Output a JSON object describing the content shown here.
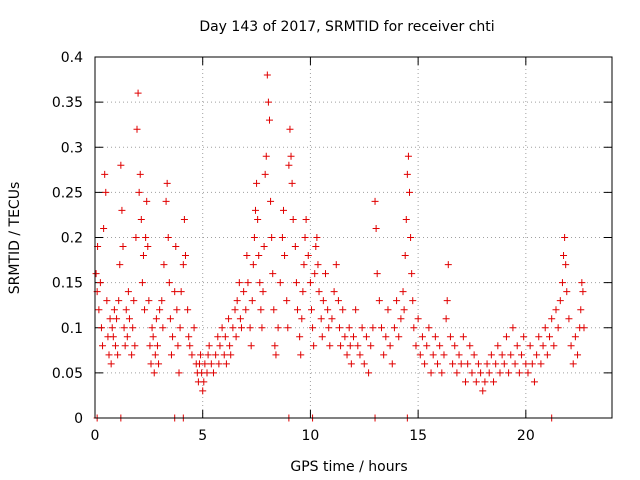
{
  "chart_data": {
    "type": "scatter",
    "title": "Day 143 of 2017, SRMTID for receiver chti",
    "xlabel": "GPS time / hours",
    "ylabel": "SRMTID / TECUs",
    "xlim": [
      0,
      24
    ],
    "ylim": [
      0,
      0.4
    ],
    "xticks": [
      0,
      5,
      10,
      15,
      20
    ],
    "yticks": [
      0,
      0.05,
      0.1,
      0.15,
      0.2,
      0.25,
      0.3,
      0.35,
      0.4
    ],
    "grid": true,
    "marker": "+",
    "color": "#e00000",
    "series": [
      {
        "name": "SRMTID",
        "points": [
          [
            0.05,
            0.16
          ],
          [
            0.1,
            0.14
          ],
          [
            0.12,
            0.19
          ],
          [
            0.18,
            0.12
          ],
          [
            0.25,
            0.15
          ],
          [
            0.3,
            0.1
          ],
          [
            0.35,
            0.08
          ],
          [
            0.4,
            0.21
          ],
          [
            0.45,
            0.27
          ],
          [
            0.5,
            0.25
          ],
          [
            0.55,
            0.13
          ],
          [
            0.6,
            0.09
          ],
          [
            0.65,
            0.07
          ],
          [
            0.7,
            0.11
          ],
          [
            0.75,
            0.06
          ],
          [
            0.8,
            0.1
          ],
          [
            0.85,
            0.09
          ],
          [
            0.9,
            0.12
          ],
          [
            0.95,
            0.08
          ],
          [
            1.0,
            0.11
          ],
          [
            1.05,
            0.07
          ],
          [
            1.1,
            0.13
          ],
          [
            1.15,
            0.17
          ],
          [
            1.2,
            0.28
          ],
          [
            1.25,
            0.23
          ],
          [
            1.3,
            0.19
          ],
          [
            1.35,
            0.1
          ],
          [
            1.4,
            0.08
          ],
          [
            1.45,
            0.12
          ],
          [
            1.5,
            0.09
          ],
          [
            1.55,
            0.14
          ],
          [
            1.6,
            0.11
          ],
          [
            1.7,
            0.07
          ],
          [
            1.75,
            0.1
          ],
          [
            1.8,
            0.13
          ],
          [
            1.85,
            0.08
          ],
          [
            1.9,
            0.2
          ],
          [
            1.95,
            0.32
          ],
          [
            2.0,
            0.36
          ],
          [
            2.05,
            0.25
          ],
          [
            2.1,
            0.27
          ],
          [
            2.15,
            0.22
          ],
          [
            2.2,
            0.15
          ],
          [
            2.25,
            0.18
          ],
          [
            2.3,
            0.12
          ],
          [
            2.35,
            0.2
          ],
          [
            2.4,
            0.24
          ],
          [
            2.45,
            0.19
          ],
          [
            2.5,
            0.13
          ],
          [
            2.55,
            0.08
          ],
          [
            2.6,
            0.06
          ],
          [
            2.65,
            0.1
          ],
          [
            2.7,
            0.09
          ],
          [
            2.75,
            0.05
          ],
          [
            2.8,
            0.07
          ],
          [
            2.85,
            0.11
          ],
          [
            2.9,
            0.08
          ],
          [
            2.95,
            0.06
          ],
          [
            3.0,
            0.12
          ],
          [
            3.1,
            0.13
          ],
          [
            3.15,
            0.1
          ],
          [
            3.2,
            0.17
          ],
          [
            3.3,
            0.24
          ],
          [
            3.35,
            0.26
          ],
          [
            3.4,
            0.2
          ],
          [
            3.45,
            0.15
          ],
          [
            3.5,
            0.11
          ],
          [
            3.55,
            0.07
          ],
          [
            3.6,
            0.09
          ],
          [
            3.7,
            0.14
          ],
          [
            3.75,
            0.19
          ],
          [
            3.8,
            0.12
          ],
          [
            3.85,
            0.08
          ],
          [
            3.9,
            0.05
          ],
          [
            3.95,
            0.1
          ],
          [
            4.0,
            0.14
          ],
          [
            4.1,
            0.17
          ],
          [
            4.15,
            0.22
          ],
          [
            4.2,
            0.18
          ],
          [
            4.3,
            0.12
          ],
          [
            4.35,
            0.09
          ],
          [
            4.4,
            0.08
          ],
          [
            4.5,
            0.07
          ],
          [
            4.6,
            0.1
          ],
          [
            4.7,
            0.06
          ],
          [
            4.75,
            0.05
          ],
          [
            4.8,
            0.04
          ],
          [
            4.85,
            0.06
          ],
          [
            4.9,
            0.07
          ],
          [
            4.95,
            0.05
          ],
          [
            5.0,
            0.03
          ],
          [
            5.05,
            0.04
          ],
          [
            5.1,
            0.06
          ],
          [
            5.2,
            0.05
          ],
          [
            5.25,
            0.07
          ],
          [
            5.3,
            0.08
          ],
          [
            5.4,
            0.06
          ],
          [
            5.5,
            0.05
          ],
          [
            5.6,
            0.07
          ],
          [
            5.7,
            0.09
          ],
          [
            5.75,
            0.06
          ],
          [
            5.8,
            0.08
          ],
          [
            5.9,
            0.1
          ],
          [
            6.0,
            0.07
          ],
          [
            6.05,
            0.09
          ],
          [
            6.1,
            0.06
          ],
          [
            6.2,
            0.11
          ],
          [
            6.25,
            0.08
          ],
          [
            6.3,
            0.07
          ],
          [
            6.4,
            0.1
          ],
          [
            6.5,
            0.12
          ],
          [
            6.55,
            0.09
          ],
          [
            6.6,
            0.13
          ],
          [
            6.7,
            0.15
          ],
          [
            6.75,
            0.11
          ],
          [
            6.8,
            0.1
          ],
          [
            6.9,
            0.14
          ],
          [
            7.0,
            0.12
          ],
          [
            7.05,
            0.18
          ],
          [
            7.1,
            0.15
          ],
          [
            7.2,
            0.1
          ],
          [
            7.25,
            0.08
          ],
          [
            7.3,
            0.13
          ],
          [
            7.35,
            0.17
          ],
          [
            7.4,
            0.2
          ],
          [
            7.45,
            0.23
          ],
          [
            7.5,
            0.26
          ],
          [
            7.55,
            0.22
          ],
          [
            7.6,
            0.18
          ],
          [
            7.65,
            0.15
          ],
          [
            7.7,
            0.12
          ],
          [
            7.75,
            0.1
          ],
          [
            7.8,
            0.14
          ],
          [
            7.85,
            0.19
          ],
          [
            7.9,
            0.27
          ],
          [
            7.95,
            0.29
          ],
          [
            8.0,
            0.38
          ],
          [
            8.05,
            0.35
          ],
          [
            8.1,
            0.33
          ],
          [
            8.15,
            0.24
          ],
          [
            8.2,
            0.2
          ],
          [
            8.25,
            0.16
          ],
          [
            8.3,
            0.12
          ],
          [
            8.35,
            0.08
          ],
          [
            8.4,
            0.07
          ],
          [
            8.5,
            0.1
          ],
          [
            8.6,
            0.15
          ],
          [
            8.7,
            0.2
          ],
          [
            8.75,
            0.23
          ],
          [
            8.8,
            0.18
          ],
          [
            8.9,
            0.13
          ],
          [
            8.95,
            0.1
          ],
          [
            9.0,
            0.28
          ],
          [
            9.05,
            0.32
          ],
          [
            9.1,
            0.29
          ],
          [
            9.15,
            0.26
          ],
          [
            9.2,
            0.22
          ],
          [
            9.3,
            0.19
          ],
          [
            9.35,
            0.15
          ],
          [
            9.4,
            0.12
          ],
          [
            9.5,
            0.09
          ],
          [
            9.55,
            0.07
          ],
          [
            9.6,
            0.11
          ],
          [
            9.65,
            0.14
          ],
          [
            9.7,
            0.17
          ],
          [
            9.75,
            0.2
          ],
          [
            9.8,
            0.22
          ],
          [
            9.9,
            0.18
          ],
          [
            10.0,
            0.15
          ],
          [
            10.05,
            0.12
          ],
          [
            10.1,
            0.1
          ],
          [
            10.15,
            0.08
          ],
          [
            10.2,
            0.16
          ],
          [
            10.25,
            0.19
          ],
          [
            10.3,
            0.2
          ],
          [
            10.35,
            0.17
          ],
          [
            10.4,
            0.14
          ],
          [
            10.5,
            0.11
          ],
          [
            10.55,
            0.09
          ],
          [
            10.6,
            0.13
          ],
          [
            10.7,
            0.16
          ],
          [
            10.8,
            0.12
          ],
          [
            10.85,
            0.1
          ],
          [
            10.9,
            0.08
          ],
          [
            11.0,
            0.11
          ],
          [
            11.1,
            0.14
          ],
          [
            11.2,
            0.17
          ],
          [
            11.3,
            0.13
          ],
          [
            11.35,
            0.1
          ],
          [
            11.4,
            0.08
          ],
          [
            11.5,
            0.12
          ],
          [
            11.6,
            0.09
          ],
          [
            11.7,
            0.07
          ],
          [
            11.8,
            0.1
          ],
          [
            11.85,
            0.08
          ],
          [
            11.9,
            0.06
          ],
          [
            12.0,
            0.09
          ],
          [
            12.1,
            0.12
          ],
          [
            12.2,
            0.08
          ],
          [
            12.3,
            0.07
          ],
          [
            12.4,
            0.1
          ],
          [
            12.5,
            0.06
          ],
          [
            12.6,
            0.09
          ],
          [
            12.7,
            0.05
          ],
          [
            12.8,
            0.08
          ],
          [
            12.9,
            0.1
          ],
          [
            13.0,
            0.24
          ],
          [
            13.05,
            0.21
          ],
          [
            13.1,
            0.16
          ],
          [
            13.2,
            0.13
          ],
          [
            13.3,
            0.1
          ],
          [
            13.4,
            0.07
          ],
          [
            13.5,
            0.09
          ],
          [
            13.6,
            0.12
          ],
          [
            13.7,
            0.08
          ],
          [
            13.8,
            0.06
          ],
          [
            13.9,
            0.1
          ],
          [
            14.0,
            0.13
          ],
          [
            14.1,
            0.09
          ],
          [
            14.2,
            0.11
          ],
          [
            14.3,
            0.14
          ],
          [
            14.35,
            0.12
          ],
          [
            14.4,
            0.18
          ],
          [
            14.45,
            0.22
          ],
          [
            14.5,
            0.27
          ],
          [
            14.55,
            0.29
          ],
          [
            14.6,
            0.25
          ],
          [
            14.65,
            0.2
          ],
          [
            14.7,
            0.16
          ],
          [
            14.75,
            0.13
          ],
          [
            14.8,
            0.1
          ],
          [
            14.9,
            0.08
          ],
          [
            15.0,
            0.11
          ],
          [
            15.1,
            0.07
          ],
          [
            15.2,
            0.09
          ],
          [
            15.3,
            0.06
          ],
          [
            15.4,
            0.08
          ],
          [
            15.5,
            0.1
          ],
          [
            15.6,
            0.05
          ],
          [
            15.7,
            0.07
          ],
          [
            15.8,
            0.09
          ],
          [
            15.9,
            0.06
          ],
          [
            16.0,
            0.08
          ],
          [
            16.1,
            0.05
          ],
          [
            16.2,
            0.07
          ],
          [
            16.3,
            0.11
          ],
          [
            16.35,
            0.13
          ],
          [
            16.4,
            0.17
          ],
          [
            16.5,
            0.09
          ],
          [
            16.6,
            0.06
          ],
          [
            16.7,
            0.08
          ],
          [
            16.8,
            0.05
          ],
          [
            16.9,
            0.07
          ],
          [
            17.0,
            0.06
          ],
          [
            17.1,
            0.09
          ],
          [
            17.2,
            0.04
          ],
          [
            17.3,
            0.06
          ],
          [
            17.4,
            0.08
          ],
          [
            17.5,
            0.05
          ],
          [
            17.6,
            0.07
          ],
          [
            17.7,
            0.04
          ],
          [
            17.8,
            0.06
          ],
          [
            17.9,
            0.05
          ],
          [
            18.0,
            0.03
          ],
          [
            18.1,
            0.04
          ],
          [
            18.2,
            0.06
          ],
          [
            18.3,
            0.05
          ],
          [
            18.4,
            0.07
          ],
          [
            18.5,
            0.04
          ],
          [
            18.6,
            0.06
          ],
          [
            18.7,
            0.08
          ],
          [
            18.8,
            0.05
          ],
          [
            18.9,
            0.07
          ],
          [
            19.0,
            0.06
          ],
          [
            19.1,
            0.09
          ],
          [
            19.2,
            0.05
          ],
          [
            19.3,
            0.07
          ],
          [
            19.4,
            0.1
          ],
          [
            19.5,
            0.06
          ],
          [
            19.6,
            0.08
          ],
          [
            19.7,
            0.05
          ],
          [
            19.8,
            0.07
          ],
          [
            19.9,
            0.09
          ],
          [
            20.0,
            0.06
          ],
          [
            20.1,
            0.05
          ],
          [
            20.2,
            0.08
          ],
          [
            20.3,
            0.06
          ],
          [
            20.4,
            0.04
          ],
          [
            20.5,
            0.07
          ],
          [
            20.6,
            0.09
          ],
          [
            20.7,
            0.06
          ],
          [
            20.8,
            0.08
          ],
          [
            20.9,
            0.1
          ],
          [
            21.0,
            0.07
          ],
          [
            21.1,
            0.09
          ],
          [
            21.2,
            0.11
          ],
          [
            21.3,
            0.08
          ],
          [
            21.4,
            0.12
          ],
          [
            21.5,
            0.1
          ],
          [
            21.6,
            0.13
          ],
          [
            21.7,
            0.15
          ],
          [
            21.75,
            0.18
          ],
          [
            21.8,
            0.2
          ],
          [
            21.85,
            0.17
          ],
          [
            21.9,
            0.14
          ],
          [
            22.0,
            0.11
          ],
          [
            22.1,
            0.08
          ],
          [
            22.2,
            0.06
          ],
          [
            22.3,
            0.09
          ],
          [
            22.4,
            0.07
          ],
          [
            22.5,
            0.1
          ],
          [
            22.55,
            0.12
          ],
          [
            22.6,
            0.15
          ],
          [
            22.65,
            0.14
          ],
          [
            22.7,
            0.1
          ]
        ]
      }
    ],
    "zero_points_x": [
      0.1,
      1.2,
      3.7,
      4.1,
      9.0,
      10.1,
      13.0,
      14.5,
      21.2
    ]
  }
}
